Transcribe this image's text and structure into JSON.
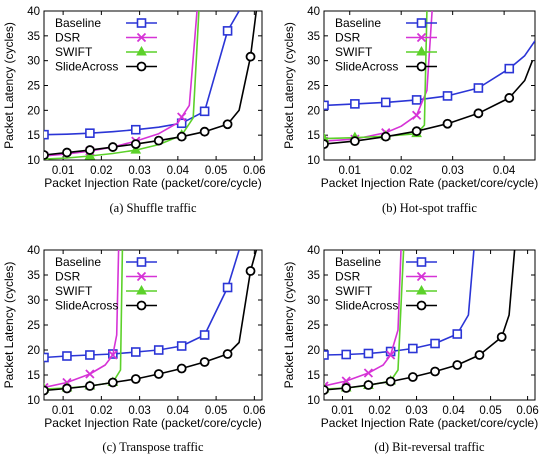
{
  "chart_data": [
    {
      "type": "line",
      "caption": "(a) Shuffle traffic",
      "xlabel": "Packet Injection Rate (packet/core/cycle)",
      "ylabel": "Packet Latency (cycles)",
      "xlim": [
        0.005,
        0.062
      ],
      "ylim": [
        10,
        40
      ],
      "xticks": [
        0.01,
        0.02,
        0.03,
        0.04,
        0.05,
        0.06
      ],
      "xtick_labels": [
        "0.01",
        "0.02",
        "0.03",
        "0.04",
        "0.05",
        "0.06"
      ],
      "yticks": [
        10,
        15,
        20,
        25,
        30,
        35,
        40
      ],
      "ytick_labels": [
        "10",
        "15",
        "20",
        "25",
        "30",
        "35",
        "40"
      ],
      "legend": "top-left",
      "grid": false,
      "series": [
        {
          "name": "Baseline",
          "color": "#2b35d6",
          "marker": "square",
          "x": [
            0.005,
            0.011,
            0.017,
            0.023,
            0.029,
            0.035,
            0.041,
            0.047,
            0.053,
            0.056
          ],
          "y": [
            15.1,
            15.2,
            15.4,
            15.7,
            16.1,
            16.6,
            17.4,
            19.8,
            36.0,
            40.0
          ],
          "marker_x": [
            0.005,
            0.017,
            0.029,
            0.041,
            0.047,
            0.053
          ]
        },
        {
          "name": "DSR",
          "color": "#d633d6",
          "marker": "x",
          "x": [
            0.005,
            0.011,
            0.017,
            0.023,
            0.029,
            0.035,
            0.04,
            0.043,
            0.045
          ],
          "y": [
            10.8,
            11.2,
            11.8,
            12.6,
            13.8,
            15.3,
            17.5,
            21.0,
            40.0
          ],
          "marker_x": [
            0.005,
            0.017,
            0.029,
            0.041
          ]
        },
        {
          "name": "SWIFT",
          "color": "#5cd12a",
          "marker": "triangle",
          "x": [
            0.005,
            0.011,
            0.017,
            0.023,
            0.029,
            0.035,
            0.041,
            0.044,
            0.0455
          ],
          "y": [
            10.2,
            10.4,
            10.8,
            11.3,
            12.0,
            13.1,
            15.0,
            18.5,
            40.0
          ],
          "marker_x": [
            0.005,
            0.017,
            0.029,
            0.041
          ]
        },
        {
          "name": "SlideAcross",
          "color": "#000000",
          "marker": "circle",
          "x": [
            0.005,
            0.011,
            0.017,
            0.023,
            0.029,
            0.035,
            0.041,
            0.047,
            0.053,
            0.056,
            0.059,
            0.0605
          ],
          "y": [
            11.0,
            11.5,
            12.0,
            12.6,
            13.2,
            13.9,
            14.7,
            15.7,
            17.2,
            20.0,
            30.8,
            40.0
          ],
          "marker_x": [
            0.005,
            0.011,
            0.017,
            0.023,
            0.029,
            0.035,
            0.041,
            0.047,
            0.053,
            0.059
          ]
        }
      ]
    },
    {
      "type": "line",
      "caption": "(b) Hot-spot traffic",
      "xlabel": "Packet Injection Rate (packet/core/cycle)",
      "ylabel": "Packet Latency (cycles)",
      "xlim": [
        0.005,
        0.046
      ],
      "ylim": [
        10,
        40
      ],
      "xticks": [
        0.01,
        0.02,
        0.03,
        0.04
      ],
      "xtick_labels": [
        "0.01",
        "0.02",
        "0.03",
        "0.04"
      ],
      "yticks": [
        10,
        15,
        20,
        25,
        30,
        35,
        40
      ],
      "ytick_labels": [
        "10",
        "15",
        "20",
        "25",
        "30",
        "35",
        "40"
      ],
      "legend": "top-left",
      "grid": false,
      "series": [
        {
          "name": "Baseline",
          "color": "#2b35d6",
          "marker": "square",
          "x": [
            0.005,
            0.011,
            0.017,
            0.023,
            0.029,
            0.035,
            0.041,
            0.044,
            0.046
          ],
          "y": [
            21.0,
            21.3,
            21.6,
            22.1,
            22.9,
            24.5,
            28.4,
            31.0,
            34.0
          ],
          "marker_x": [
            0.005,
            0.011,
            0.017,
            0.023,
            0.029,
            0.035,
            0.041
          ]
        },
        {
          "name": "DSR",
          "color": "#d633d6",
          "marker": "x",
          "x": [
            0.005,
            0.011,
            0.017,
            0.02,
            0.023,
            0.025,
            0.026
          ],
          "y": [
            13.8,
            14.2,
            15.5,
            16.8,
            19.0,
            24.0,
            40.0
          ],
          "marker_x": [
            0.005,
            0.011,
            0.017,
            0.023
          ]
        },
        {
          "name": "SWIFT",
          "color": "#5cd12a",
          "marker": "triangle",
          "x": [
            0.005,
            0.011,
            0.017,
            0.023,
            0.0245,
            0.025
          ],
          "y": [
            14.3,
            14.5,
            14.8,
            15.3,
            17.0,
            40.0
          ],
          "marker_x": [
            0.005,
            0.011,
            0.017,
            0.023
          ]
        },
        {
          "name": "SlideAcross",
          "color": "#000000",
          "marker": "circle",
          "x": [
            0.005,
            0.011,
            0.017,
            0.023,
            0.029,
            0.035,
            0.041,
            0.044,
            0.0455
          ],
          "y": [
            13.2,
            13.8,
            14.7,
            15.8,
            17.3,
            19.4,
            22.5,
            26.0,
            30.0
          ],
          "marker_x": [
            0.005,
            0.011,
            0.017,
            0.023,
            0.029,
            0.035,
            0.041
          ]
        }
      ]
    },
    {
      "type": "line",
      "caption": "(c) Transpose traffic",
      "xlabel": "Packet Injection Rate (packet/core/cycle)",
      "ylabel": "Packet Latency (cycles)",
      "xlim": [
        0.005,
        0.062
      ],
      "ylim": [
        10,
        40
      ],
      "xticks": [
        0.01,
        0.02,
        0.03,
        0.04,
        0.05,
        0.06
      ],
      "xtick_labels": [
        "0.01",
        "0.02",
        "0.03",
        "0.04",
        "0.05",
        "0.06"
      ],
      "yticks": [
        10,
        15,
        20,
        25,
        30,
        35,
        40
      ],
      "ytick_labels": [
        "10",
        "15",
        "20",
        "25",
        "30",
        "35",
        "40"
      ],
      "legend": "top-left",
      "grid": false,
      "series": [
        {
          "name": "Baseline",
          "color": "#2b35d6",
          "marker": "square",
          "x": [
            0.005,
            0.011,
            0.017,
            0.023,
            0.029,
            0.035,
            0.041,
            0.047,
            0.053,
            0.056
          ],
          "y": [
            18.5,
            18.8,
            19.0,
            19.2,
            19.6,
            20.0,
            20.8,
            23.0,
            32.5,
            40.0
          ],
          "marker_x": [
            0.005,
            0.011,
            0.017,
            0.023,
            0.029,
            0.035,
            0.041,
            0.047,
            0.053
          ]
        },
        {
          "name": "DSR",
          "color": "#d633d6",
          "marker": "x",
          "x": [
            0.005,
            0.011,
            0.017,
            0.021,
            0.023,
            0.024,
            0.0245
          ],
          "y": [
            12.5,
            13.5,
            15.2,
            17.0,
            19.0,
            23.0,
            40.0
          ],
          "marker_x": [
            0.005,
            0.011,
            0.017,
            0.023
          ]
        },
        {
          "name": "SWIFT",
          "color": "#5cd12a",
          "marker": "triangle",
          "x": [
            0.005,
            0.011,
            0.017,
            0.023,
            0.025,
            0.0255
          ],
          "y": [
            12.2,
            12.4,
            12.8,
            13.5,
            16.0,
            40.0
          ],
          "marker_x": [
            0.005,
            0.011,
            0.017,
            0.023
          ]
        },
        {
          "name": "SlideAcross",
          "color": "#000000",
          "marker": "circle",
          "x": [
            0.005,
            0.011,
            0.017,
            0.023,
            0.029,
            0.035,
            0.041,
            0.047,
            0.053,
            0.056,
            0.059,
            0.0605
          ],
          "y": [
            11.9,
            12.3,
            12.8,
            13.5,
            14.2,
            15.2,
            16.3,
            17.6,
            19.2,
            21.5,
            35.8,
            40.0
          ],
          "marker_x": [
            0.005,
            0.011,
            0.017,
            0.023,
            0.029,
            0.035,
            0.041,
            0.047,
            0.053,
            0.059
          ]
        }
      ]
    },
    {
      "type": "line",
      "caption": "(d) Bit-reversal traffic",
      "xlabel": "Packet Injection Rate (packet/core/cycle)",
      "ylabel": "Packet Latency (cycles)",
      "xlim": [
        0.005,
        0.062
      ],
      "ylim": [
        10,
        40
      ],
      "xticks": [
        0.01,
        0.02,
        0.03,
        0.04,
        0.05,
        0.06
      ],
      "xtick_labels": [
        "0.01",
        "0.02",
        "0.03",
        "0.04",
        "0.05",
        "0.06"
      ],
      "yticks": [
        10,
        15,
        20,
        25,
        30,
        35,
        40
      ],
      "ytick_labels": [
        "10",
        "15",
        "20",
        "25",
        "30",
        "35",
        "40"
      ],
      "legend": "top-left",
      "grid": false,
      "series": [
        {
          "name": "Baseline",
          "color": "#2b35d6",
          "marker": "square",
          "x": [
            0.005,
            0.011,
            0.017,
            0.023,
            0.029,
            0.035,
            0.041,
            0.044,
            0.0455
          ],
          "y": [
            19.0,
            19.1,
            19.3,
            19.7,
            20.3,
            21.3,
            23.2,
            27.0,
            40.0
          ],
          "marker_x": [
            0.005,
            0.011,
            0.017,
            0.023,
            0.029,
            0.035,
            0.041
          ]
        },
        {
          "name": "DSR",
          "color": "#d633d6",
          "marker": "x",
          "x": [
            0.005,
            0.011,
            0.017,
            0.021,
            0.023,
            0.025,
            0.0258
          ],
          "y": [
            12.8,
            13.8,
            15.4,
            17.0,
            19.0,
            24.0,
            40.0
          ],
          "marker_x": [
            0.005,
            0.011,
            0.017,
            0.023
          ]
        },
        {
          "name": "SWIFT",
          "color": "#5cd12a",
          "marker": "triangle",
          "x": [
            0.005,
            0.011,
            0.017,
            0.023,
            0.025,
            0.0265
          ],
          "y": [
            12.2,
            12.4,
            12.9,
            13.8,
            16.0,
            40.0
          ],
          "marker_x": [
            0.005,
            0.011,
            0.017,
            0.023
          ]
        },
        {
          "name": "SlideAcross",
          "color": "#000000",
          "marker": "circle",
          "x": [
            0.005,
            0.011,
            0.017,
            0.023,
            0.029,
            0.035,
            0.041,
            0.047,
            0.053,
            0.055,
            0.0565
          ],
          "y": [
            12.0,
            12.4,
            13.0,
            13.7,
            14.6,
            15.7,
            17.0,
            19.0,
            22.6,
            27.0,
            40.0
          ],
          "marker_x": [
            0.005,
            0.011,
            0.017,
            0.023,
            0.029,
            0.035,
            0.041,
            0.047,
            0.053
          ]
        }
      ]
    }
  ]
}
